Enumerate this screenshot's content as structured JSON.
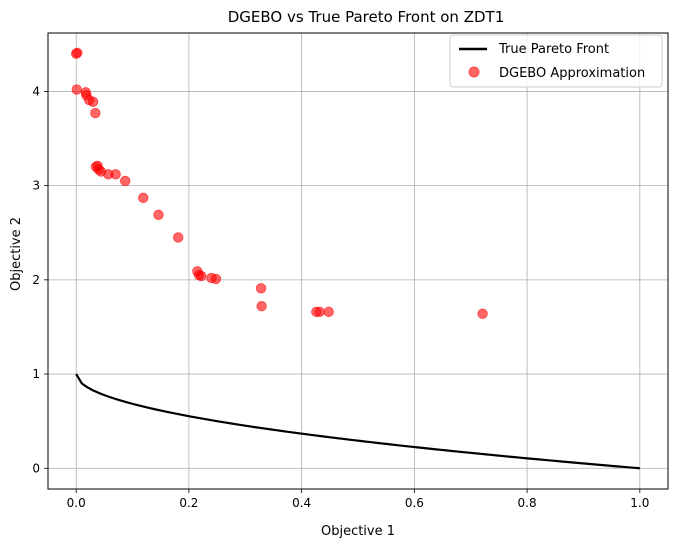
{
  "chart_data": {
    "type": "scatter",
    "title": "DGEBO vs True Pareto Front on ZDT1",
    "xlabel": "Objective 1",
    "ylabel": "Objective 2",
    "xlim": [
      -0.05,
      1.05
    ],
    "ylim": [
      -0.22,
      4.62
    ],
    "xticks": [
      0.0,
      0.2,
      0.4,
      0.6,
      0.8,
      1.0
    ],
    "xtick_labels": [
      "0.0",
      "0.2",
      "0.4",
      "0.6",
      "0.8",
      "1.0"
    ],
    "yticks": [
      0,
      1,
      2,
      3,
      4
    ],
    "ytick_labels": [
      "0",
      "1",
      "2",
      "3",
      "4"
    ],
    "grid": true,
    "legend_position": "top-right",
    "series": [
      {
        "name": "True Pareto Front",
        "kind": "line",
        "color": "#000000",
        "function": "1 - sqrt(x)",
        "x_range": [
          0,
          1
        ]
      },
      {
        "name": "DGEBO Approximation",
        "kind": "scatter",
        "color": "#ff0000",
        "points": [
          [
            0.0,
            4.4
          ],
          [
            0.002,
            4.41
          ],
          [
            0.001,
            4.02
          ],
          [
            0.017,
            3.99
          ],
          [
            0.018,
            3.96
          ],
          [
            0.023,
            3.91
          ],
          [
            0.03,
            3.89
          ],
          [
            0.034,
            3.77
          ],
          [
            0.035,
            3.2
          ],
          [
            0.038,
            3.21
          ],
          [
            0.04,
            3.17
          ],
          [
            0.044,
            3.15
          ],
          [
            0.057,
            3.12
          ],
          [
            0.07,
            3.12
          ],
          [
            0.087,
            3.05
          ],
          [
            0.119,
            2.87
          ],
          [
            0.146,
            2.69
          ],
          [
            0.181,
            2.45
          ],
          [
            0.215,
            2.09
          ],
          [
            0.218,
            2.05
          ],
          [
            0.222,
            2.04
          ],
          [
            0.24,
            2.02
          ],
          [
            0.248,
            2.01
          ],
          [
            0.328,
            1.91
          ],
          [
            0.329,
            1.72
          ],
          [
            0.426,
            1.66
          ],
          [
            0.432,
            1.66
          ],
          [
            0.448,
            1.66
          ],
          [
            0.721,
            1.64
          ]
        ]
      }
    ]
  }
}
